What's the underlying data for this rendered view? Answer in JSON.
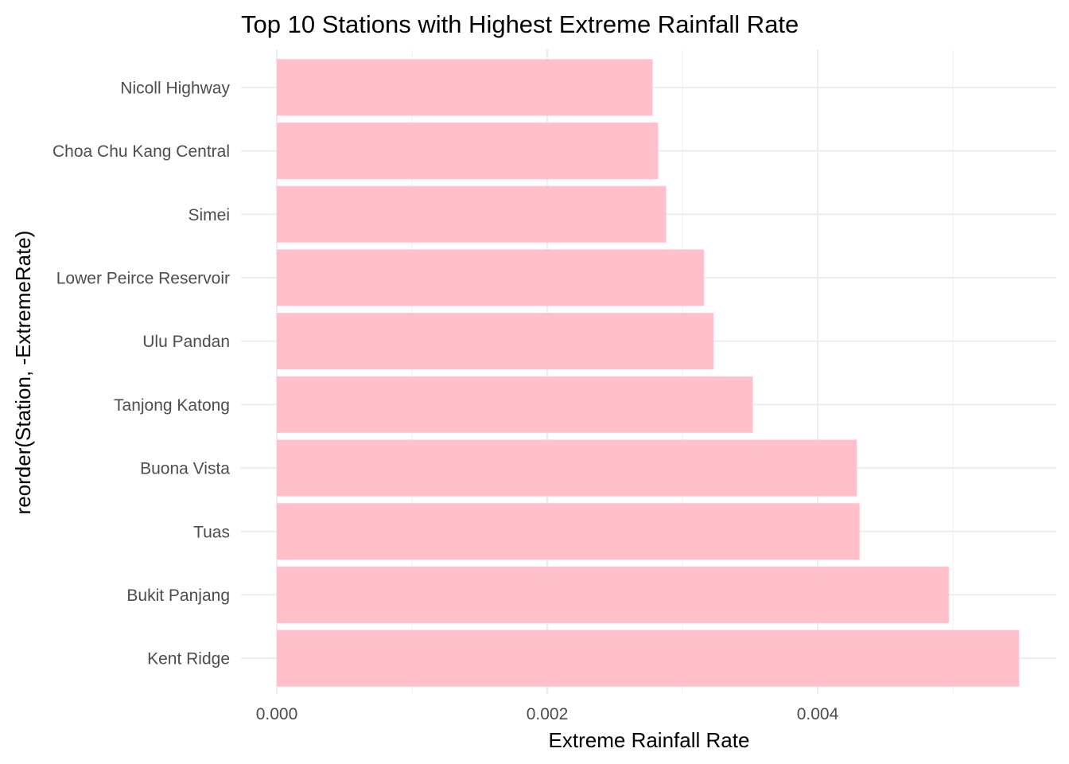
{
  "chart_data": {
    "type": "bar",
    "orientation": "horizontal",
    "title": "Top 10 Stations with Highest Extreme Rainfall Rate",
    "xlabel": "Extreme Rainfall Rate",
    "ylabel": "reorder(Station, -ExtremeRate)",
    "categories": [
      "Nicoll Highway",
      "Choa Chu Kang Central",
      "Simei",
      "Lower Peirce Reservoir",
      "Ulu Pandan",
      "Tanjong Katong",
      "Buona Vista",
      "Tuas",
      "Bukit Panjang",
      "Kent Ridge"
    ],
    "values": [
      0.00278,
      0.00282,
      0.00288,
      0.00316,
      0.00323,
      0.00352,
      0.00429,
      0.00431,
      0.00497,
      0.00549
    ],
    "xlim": [
      0,
      0.0058
    ],
    "x_ticks": [
      0,
      0.002,
      0.004
    ],
    "x_tick_labels": [
      "0.000",
      "0.002",
      "0.004"
    ],
    "bar_color": "#ffc0cb",
    "grid": true,
    "legend": "none"
  }
}
